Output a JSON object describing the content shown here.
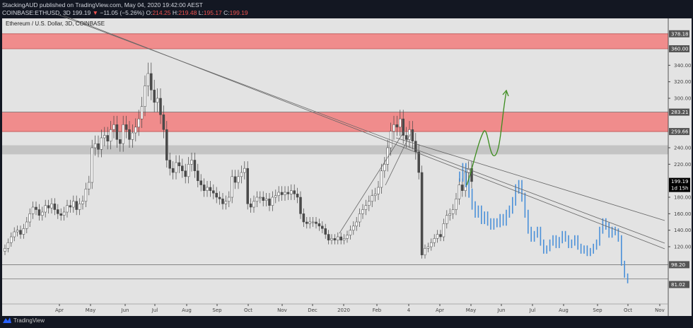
{
  "header": {
    "line1": "StackingAUD published on TradingView.com, May 04, 2020 19:42:00 AEST",
    "symbol": "COINBASE:ETHUSD, 3D",
    "last": "199.19",
    "arrow": "▼",
    "change": "−11.05 (−5.26%)",
    "o_label": "O:",
    "o": "214.25",
    "h_label": "H:",
    "h": "219.48",
    "l_label": "L:",
    "l": "195.17",
    "c_label": "C:",
    "c": "199.19"
  },
  "footer": {
    "brand": "TradingView"
  },
  "chart_data": {
    "type": "candlestick",
    "title": "Ethereum / U.S. Dollar, 3D, COINBASE",
    "price_axis_ticks": [
      "340.00",
      "320.00",
      "300.00",
      "240.00",
      "220.00",
      "180.00",
      "160.00",
      "140.00",
      "120.00"
    ],
    "price_labels": [
      {
        "value": 378.18,
        "text": "378.18"
      },
      {
        "value": 360,
        "text": "360.00"
      },
      {
        "value": 283.21,
        "text": "283.21"
      },
      {
        "value": 259.66,
        "text": "259.66"
      },
      {
        "value": 98.2,
        "text": "98.20"
      },
      {
        "value": 81.02,
        "text": "81.02"
      }
    ],
    "last_price": {
      "text": "199.19",
      "countdown": "1d 15h"
    },
    "time_ticks": [
      "Apr",
      "May",
      "Jun",
      "Jul",
      "Aug",
      "Sep",
      "Oct",
      "Nov",
      "Dec",
      "2020",
      "Feb",
      "4",
      "Apr",
      "May",
      "Jun",
      "Jul",
      "Aug",
      "Sep",
      "Oct",
      "Nov"
    ],
    "ylim": [
      70,
      390
    ],
    "grid": false,
    "colors": {
      "background": "#e3e3e3",
      "up": "#ffffff",
      "down": "#4a4a4a",
      "zone_red": "#f08c8c",
      "zone_gray": "#c4c4c4",
      "projection": "#4a90d9",
      "path": "#3c8c1e"
    },
    "zones": [
      {
        "from": 360,
        "to": 378.18,
        "color": "red"
      },
      {
        "from": 259.66,
        "to": 283.21,
        "color": "red"
      },
      {
        "from": 232,
        "to": 243,
        "color": "gray"
      }
    ],
    "horizontal_lines": [
      283.21,
      98.2,
      81.02
    ],
    "closes": [
      118,
      125,
      132,
      138,
      140,
      135,
      142,
      150,
      160,
      168,
      165,
      158,
      162,
      170,
      167,
      172,
      165,
      160,
      158,
      162,
      170,
      168,
      175,
      165,
      172,
      175,
      190,
      198,
      240,
      245,
      238,
      252,
      255,
      248,
      262,
      268,
      250,
      245,
      268,
      262,
      250,
      258,
      265,
      275,
      290,
      315,
      330,
      310,
      295,
      300,
      280,
      262,
      225,
      215,
      210,
      222,
      218,
      212,
      205,
      220,
      225,
      212,
      200,
      195,
      188,
      192,
      188,
      185,
      180,
      178,
      172,
      175,
      180,
      205,
      198,
      205,
      210,
      215,
      172,
      168,
      175,
      180,
      180,
      176,
      178,
      170,
      180,
      182,
      186,
      183,
      186,
      184,
      188,
      184,
      180,
      160,
      150,
      148,
      150,
      150,
      148,
      145,
      142,
      135,
      128,
      130,
      128,
      132,
      128,
      130,
      134,
      140,
      145,
      150,
      160,
      165,
      170,
      175,
      182,
      184,
      192,
      212,
      220,
      240,
      260,
      268,
      265,
      275,
      255,
      250,
      262,
      248,
      235,
      210,
      110,
      118,
      120,
      125,
      130,
      135,
      132,
      148,
      158,
      160,
      165,
      178,
      195,
      188,
      210,
      215,
      199
    ],
    "projection": [
      205,
      215,
      198,
      185,
      170,
      160,
      165,
      152,
      158,
      150,
      145,
      150,
      148,
      155,
      150,
      160,
      165,
      175,
      190,
      195,
      180,
      160,
      140,
      130,
      135,
      140,
      125,
      115,
      118,
      125,
      130,
      122,
      128,
      135,
      130,
      122,
      125,
      130,
      120,
      115,
      118,
      112,
      115,
      120,
      125,
      140,
      150,
      145,
      135,
      140,
      138,
      130,
      100,
      85,
      78
    ]
  }
}
